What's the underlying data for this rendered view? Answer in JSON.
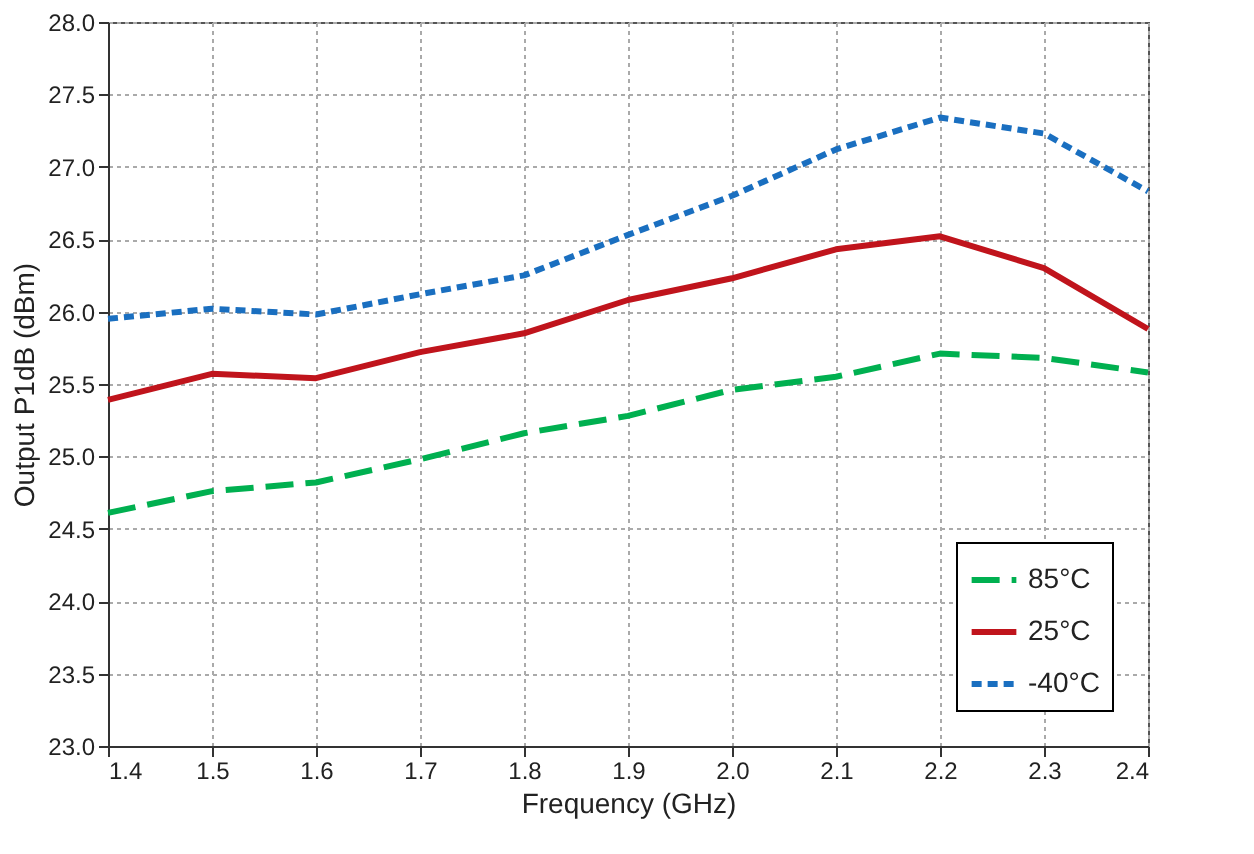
{
  "chart_data": {
    "type": "line",
    "xlabel": "Frequency (GHz)",
    "ylabel": "Output P1dB (dBm)",
    "x": [
      1.4,
      1.5,
      1.6,
      1.7,
      1.8,
      1.9,
      2.0,
      2.1,
      2.2,
      2.3,
      2.4
    ],
    "series": [
      {
        "name": "85°C",
        "color": "#00b050",
        "line_style": "dashed",
        "values": [
          24.61,
          24.76,
          24.82,
          24.98,
          25.16,
          25.28,
          25.46,
          25.55,
          25.71,
          25.68,
          25.58
        ]
      },
      {
        "name": "25°C",
        "color": "#c0141c",
        "line_style": "solid",
        "values": [
          25.39,
          25.57,
          25.54,
          25.72,
          25.85,
          26.08,
          26.23,
          26.43,
          26.52,
          26.3,
          25.88
        ]
      },
      {
        "name": "-40°C",
        "color": "#1a6fc0",
        "line_style": "dotted",
        "values": [
          25.95,
          26.02,
          25.98,
          26.12,
          26.25,
          26.53,
          26.8,
          27.12,
          27.34,
          27.23,
          26.83
        ]
      }
    ],
    "xlim": [
      1.4,
      2.4
    ],
    "xticks": [
      1.4,
      1.5,
      1.6,
      1.7,
      1.8,
      1.9,
      {
        "value": 2.0,
        "label": "2.0"
      },
      2.1,
      2.2,
      2.3,
      2.4
    ],
    "ylim": [
      23.0,
      28.0
    ],
    "yticks": [
      {
        "value": 23,
        "label": "23.0"
      },
      23.5,
      {
        "value": 24,
        "label": "24.0"
      },
      24.5,
      {
        "value": 25,
        "label": "25.0"
      },
      25.5,
      {
        "value": 26,
        "label": "26.0"
      },
      26.5,
      {
        "value": 27,
        "label": "27.0"
      },
      27.5,
      {
        "value": 28,
        "label": "28.0"
      }
    ],
    "grid": true,
    "legend": "bottom right",
    "marker": "none"
  }
}
